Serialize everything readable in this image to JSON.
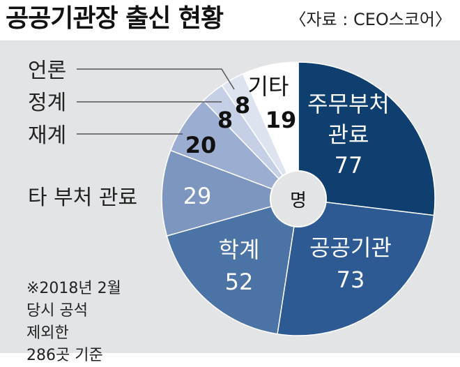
{
  "header": {
    "title": "공공기관장 출신 현황",
    "source": "〈자료 : CEO스코어〉"
  },
  "note": "※2018년 2월\n당시 공석\n제외한\n286곳 기준",
  "center_label": "명",
  "chart_data": {
    "type": "pie",
    "unit": "명",
    "slices": [
      {
        "label": "주무부처 관료",
        "value": 77,
        "color": "#0e3f6e"
      },
      {
        "label": "공공기관",
        "value": 73,
        "color": "#2d5a92"
      },
      {
        "label": "학계",
        "value": 52,
        "color": "#4c73a6"
      },
      {
        "label": "타 부처 관료",
        "value": 29,
        "color": "#7d96c0"
      },
      {
        "label": "재계",
        "value": 20,
        "color": "#9badd0"
      },
      {
        "label": "정계",
        "value": 8,
        "color": "#c5d0e6"
      },
      {
        "label": "언론",
        "value": 8,
        "color": "#dde4f0"
      },
      {
        "label": "기타",
        "value": 19,
        "color": "#ffffff"
      }
    ]
  }
}
